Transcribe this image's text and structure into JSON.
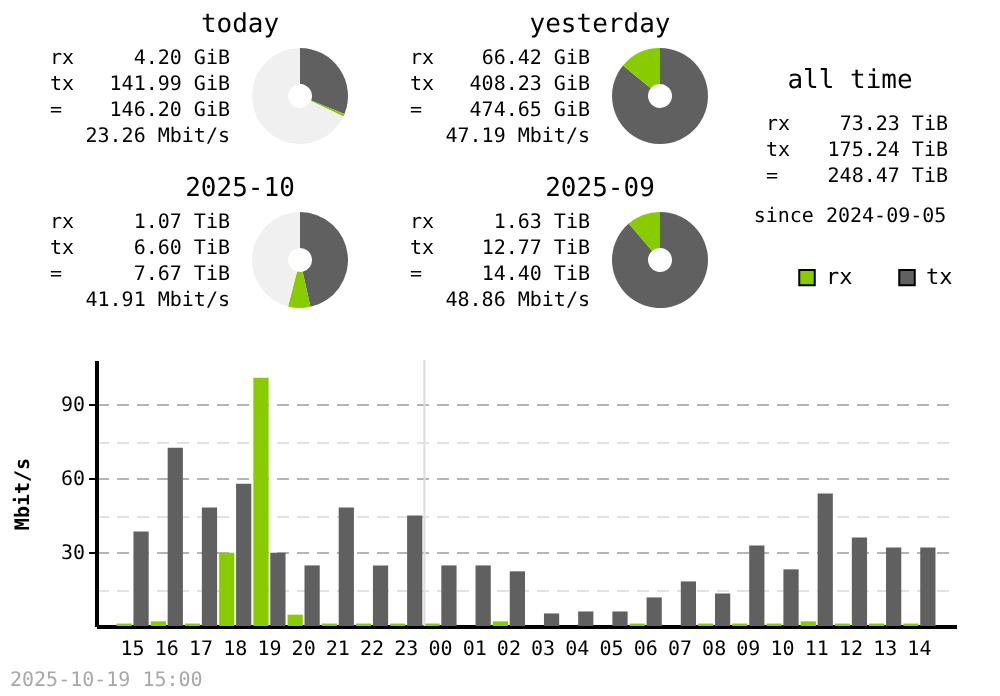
{
  "chart_data": [
    {
      "type": "donut",
      "title": "today",
      "categories": [
        null,
        null,
        null
      ],
      "values": [
        31.1,
        0.9,
        68.0
      ],
      "colors": [
        "#606060",
        "#88cc00",
        "#f0f0f0"
      ],
      "annotations": [
        "rx 4.20 GiB",
        "tx 141.99 GiB",
        "= 146.20 GiB",
        "23.26 Mbit/s"
      ]
    },
    {
      "type": "donut",
      "title": "yesterday",
      "categories": [
        null,
        null
      ],
      "values": [
        86.0,
        14.0
      ],
      "colors": [
        "#606060",
        "#88cc00"
      ],
      "annotations": [
        "rx 66.42 GiB",
        "tx 408.23 GiB",
        "= 474.65 GiB",
        "47.19 Mbit/s"
      ]
    },
    {
      "type": "other",
      "title": "all time",
      "annotations": [
        "rx 73.23 TiB",
        "tx 175.24 TiB",
        "= 248.47 TiB",
        "since 2024-09-05"
      ]
    },
    {
      "type": "donut",
      "title": "2025-10",
      "categories": [
        null,
        null,
        null
      ],
      "values": [
        46.5,
        7.5,
        46.0
      ],
      "colors": [
        "#606060",
        "#88cc00",
        "#f0f0f0"
      ],
      "annotations": [
        "rx 1.07 TiB",
        "tx 6.60 TiB",
        "= 7.67 TiB",
        "41.91 Mbit/s"
      ]
    },
    {
      "type": "donut",
      "title": "2025-09",
      "categories": [
        null,
        null
      ],
      "values": [
        88.7,
        11.3
      ],
      "colors": [
        "#606060",
        "#88cc00"
      ],
      "annotations": [
        "rx 1.63 TiB",
        "tx 12.77 TiB",
        "= 14.40 TiB",
        "48.86 Mbit/s"
      ]
    },
    {
      "type": "bar",
      "ylabel": "Mbit/s",
      "categories": [
        "15",
        "16",
        "17",
        "18",
        "19",
        "20",
        "21",
        "22",
        "23",
        "00",
        "01",
        "02",
        "03",
        "04",
        "05",
        "06",
        "07",
        "08",
        "09",
        "10",
        "11",
        "12",
        "13",
        "14"
      ],
      "series": [
        {
          "name": "rx",
          "color": "#88cc00",
          "values": [
            1,
            1.9,
            1,
            29.7,
            100.8,
            4.6,
            1,
            1,
            1,
            1,
            0,
            1.9,
            0,
            0,
            0,
            1,
            0,
            1,
            1,
            1,
            1.9,
            1,
            1,
            1
          ]
        },
        {
          "name": "tx",
          "color": "#606060",
          "values": [
            38.4,
            72.4,
            48.1,
            57.8,
            29.7,
            24.6,
            48.1,
            24.6,
            44.9,
            24.6,
            24.6,
            22.2,
            5.1,
            5.9,
            5.9,
            11.6,
            18.1,
            13.2,
            32.7,
            23.0,
            53.8,
            35.9,
            31.9,
            31.9
          ]
        }
      ],
      "ylim": [
        0,
        108
      ],
      "yticks": [
        {
          "value": 15,
          "label": null
        },
        30,
        {
          "value": 45,
          "label": null
        },
        60,
        {
          "value": 75,
          "label": null
        },
        90
      ],
      "grid": "y",
      "legend": "top right",
      "ref_lines": [
        {
          "axis": "x",
          "value": "00",
          "color": "#dddddd"
        }
      ],
      "annotations": [
        "2025-10-19 15:00"
      ]
    }
  ]
}
